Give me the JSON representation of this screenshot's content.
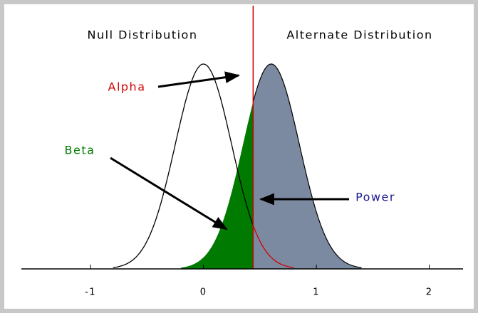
{
  "chart_data": {
    "type": "normal",
    "xlim": [
      -1.6,
      2.4
    ],
    "xticks": [
      -1,
      0,
      1,
      2
    ],
    "critical": 0.44,
    "series": [
      {
        "name": "Null Distribution",
        "mean": 0,
        "sd": 0.25,
        "color": "#000000",
        "tail_color": "#d40000"
      },
      {
        "name": "Alternate Distribution",
        "mean": 0.6,
        "sd": 0.25,
        "color": "#000000"
      }
    ],
    "regions": [
      {
        "label": "Alpha",
        "color": "#d40000"
      },
      {
        "label": "Beta",
        "color": "#007a00"
      },
      {
        "label": "Power",
        "color": "#1a1a8c"
      }
    ],
    "critical_color": "#cc0000"
  }
}
